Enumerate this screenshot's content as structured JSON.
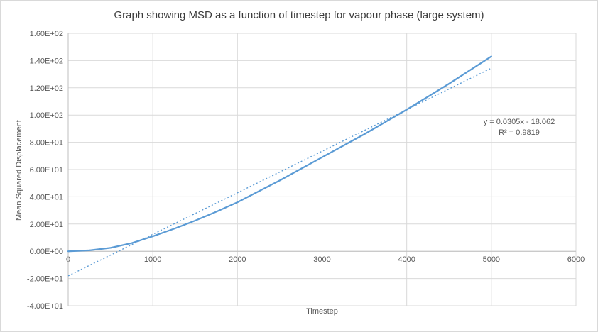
{
  "title": "Graph showing MSD as a function of timestep for vapour phase (large system)",
  "colors": {
    "series_line": "#5b9bd5",
    "trendline": "#5b9bd5",
    "gridline": "#d9d9d9",
    "axis_line": "#bfbfbf",
    "tick_text": "#595959"
  },
  "chart_data": {
    "type": "line",
    "title": "Graph showing MSD as a function of timestep for vapour phase (large system)",
    "xlabel": "Timestep",
    "ylabel": "Mean Squared Displacement",
    "xlim": [
      0,
      6000
    ],
    "ylim": [
      -40,
      160
    ],
    "grid": true,
    "legend": false,
    "x_ticks": [
      {
        "v": 0,
        "label": "0"
      },
      {
        "v": 1000,
        "label": "1000"
      },
      {
        "v": 2000,
        "label": "2000"
      },
      {
        "v": 3000,
        "label": "3000"
      },
      {
        "v": 4000,
        "label": "4000"
      },
      {
        "v": 5000,
        "label": "5000"
      },
      {
        "v": 6000,
        "label": "6000"
      }
    ],
    "y_ticks": [
      {
        "v": 160,
        "label": "1.60E+02"
      },
      {
        "v": 140,
        "label": "1.40E+02"
      },
      {
        "v": 120,
        "label": "1.20E+02"
      },
      {
        "v": 100,
        "label": "1.00E+02"
      },
      {
        "v": 80,
        "label": "8.00E+01"
      },
      {
        "v": 60,
        "label": "6.00E+01"
      },
      {
        "v": 40,
        "label": "4.00E+01"
      },
      {
        "v": 20,
        "label": "2.00E+01"
      },
      {
        "v": 0,
        "label": "0.00E+00"
      },
      {
        "v": -20,
        "label": "-2.00E+01"
      },
      {
        "v": -40,
        "label": "-4.00E+01"
      }
    ],
    "series": [
      {
        "name": "MSD",
        "x": [
          0,
          250,
          500,
          750,
          1000,
          1250,
          1500,
          1750,
          2000,
          2250,
          2500,
          2750,
          3000,
          3250,
          3500,
          3750,
          4000,
          4250,
          4500,
          4750,
          5000
        ],
        "y": [
          0,
          0.7,
          2.5,
          6,
          11,
          16.5,
          22.5,
          29,
          36,
          44,
          52,
          60.5,
          69,
          77.5,
          86,
          95,
          104,
          113.5,
          123,
          133,
          143
        ]
      }
    ],
    "trendline": {
      "slope": 0.0305,
      "intercept": -18.062,
      "x_start": 0,
      "x_end": 5000,
      "equation": "y = 0.0305x - 18.062",
      "r_squared": "R² = 0.9819"
    }
  }
}
